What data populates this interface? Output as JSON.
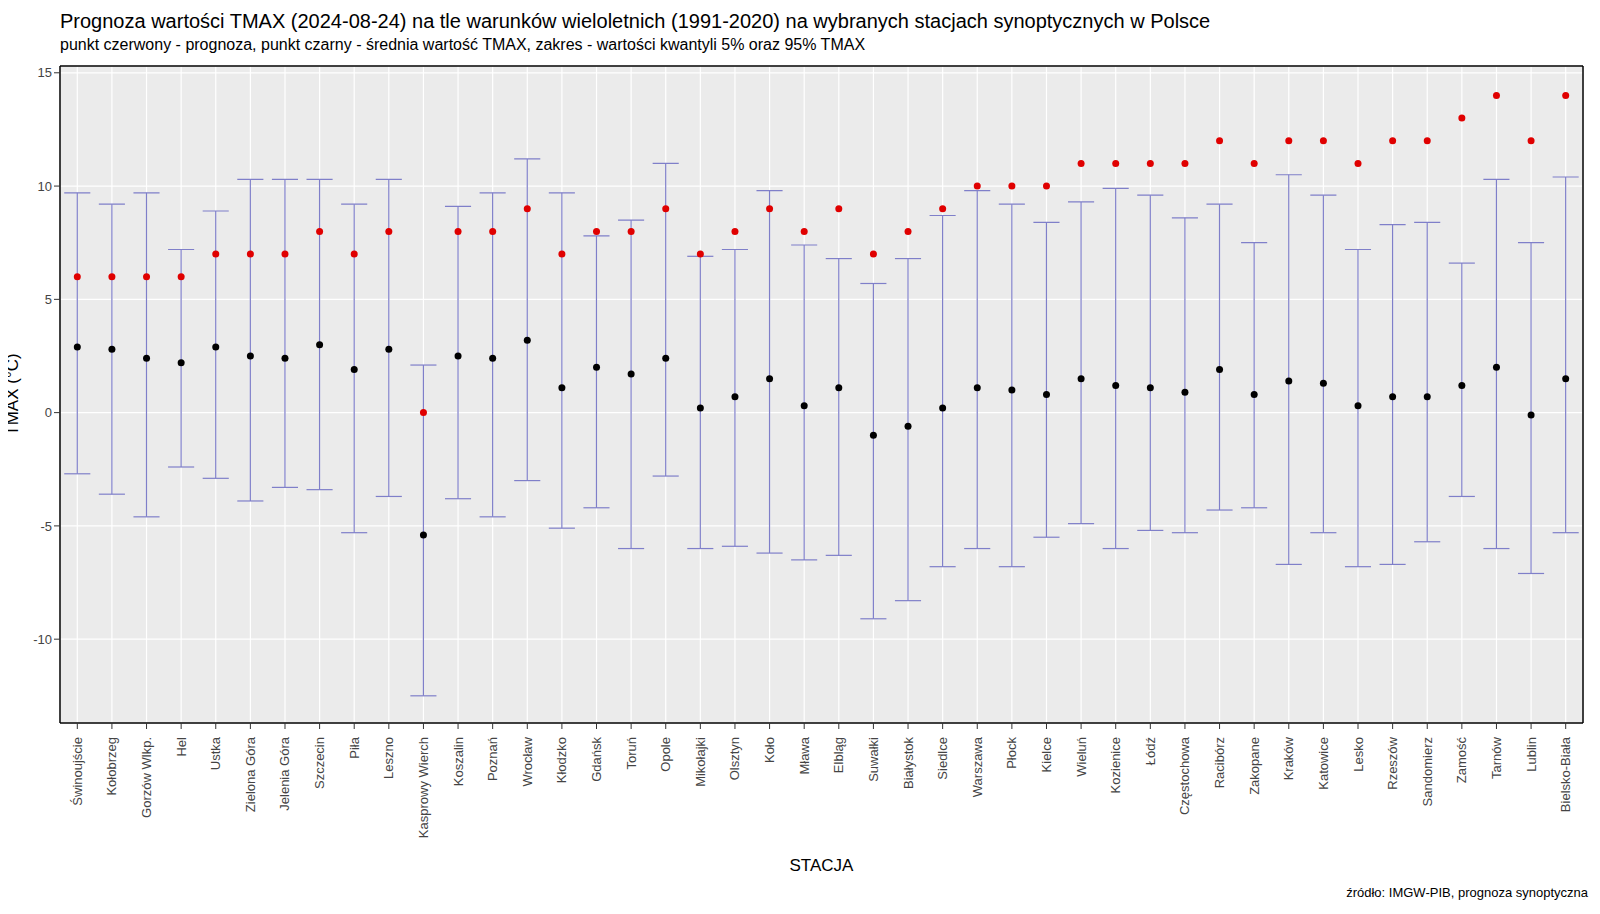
{
  "chart_data": {
    "type": "errorbar_scatter",
    "title": "Prognoza wartości TMAX (2024-08-24) na tle warunków wieloletnich (1991-2020) na wybranych stacjach synoptycznych w Polsce",
    "subtitle": "punkt czerwony - prognoza, punkt czarny - średnia wartość TMAX, zakres - wartości kwantyli 5% oraz 95% TMAX",
    "x_label": "STACJA",
    "y_label": "TMAX (°C)",
    "source": "źródło: IMGW-PIB, prognoza synoptyczna",
    "categories": [
      "Świnoujście",
      "Kołobrzeg",
      "Gorzów Wlkp.",
      "Hel",
      "Ustka",
      "Zielona Góra",
      "Jelenia Góra",
      "Szczecin",
      "Piła",
      "Leszno",
      "Kasprowy Wierch",
      "Koszalin",
      "Poznań",
      "Wrocław",
      "Kłodzko",
      "Gdańsk",
      "Toruń",
      "Opole",
      "Mikołajki",
      "Olsztyn",
      "Koło",
      "Mława",
      "Elbląg",
      "Suwałki",
      "Białystok",
      "Siedlce",
      "Warszawa",
      "Płock",
      "Kielce",
      "Wieluń",
      "Kozienice",
      "Łódź",
      "Częstochowa",
      "Racibórz",
      "Zakopane",
      "Kraków",
      "Katowice",
      "Lesko",
      "Rzeszów",
      "Sandomierz",
      "Zamość",
      "Tarnów",
      "Lublin",
      "Bielsko-Biała"
    ],
    "error_bars": {
      "color": "#7f7fc9",
      "low": [
        -2.7,
        -3.6,
        -4.6,
        -2.4,
        -2.9,
        -3.9,
        -3.3,
        -3.4,
        -5.3,
        -3.7,
        -12.5,
        -3.8,
        -4.6,
        -3.0,
        -5.1,
        -4.2,
        -6.0,
        -2.8,
        -6.0,
        -5.9,
        -6.2,
        -6.5,
        -6.3,
        -9.1,
        -8.3,
        -6.8,
        -6.0,
        -6.8,
        -5.5,
        -4.9,
        -6.0,
        -5.2,
        -5.3,
        -4.3,
        -4.2,
        -6.7,
        -5.3,
        -6.8,
        -6.7,
        -5.7,
        -3.7,
        -6.0,
        -7.1,
        -5.3
      ],
      "high": [
        9.7,
        9.2,
        9.7,
        7.2,
        8.9,
        10.3,
        10.3,
        10.3,
        9.2,
        10.3,
        2.1,
        9.1,
        9.7,
        11.2,
        9.7,
        7.8,
        8.5,
        11.0,
        6.9,
        7.2,
        9.8,
        7.4,
        6.8,
        5.7,
        6.8,
        8.7,
        9.8,
        9.2,
        8.4,
        9.3,
        9.9,
        9.6,
        8.6,
        9.2,
        7.5,
        10.5,
        9.6,
        7.2,
        8.3,
        8.4,
        6.6,
        10.3,
        7.5,
        10.4
      ]
    },
    "series": [
      {
        "type": "scatter",
        "color": "#000000",
        "values": [
          2.9,
          2.8,
          2.4,
          2.2,
          2.9,
          2.5,
          2.4,
          3.0,
          1.9,
          2.8,
          -5.4,
          2.5,
          2.4,
          3.2,
          1.1,
          2.0,
          1.7,
          2.4,
          0.2,
          0.7,
          1.5,
          0.3,
          1.1,
          -1.0,
          -0.6,
          0.2,
          1.1,
          1.0,
          0.8,
          1.5,
          1.2,
          1.1,
          0.9,
          1.9,
          0.8,
          1.4,
          1.3,
          0.3,
          0.7,
          0.7,
          1.2,
          2.0,
          -0.1,
          1.5
        ]
      },
      {
        "type": "scatter",
        "color": "#e00000",
        "values": [
          6,
          6,
          6,
          6,
          7,
          7,
          7,
          8,
          7,
          8,
          0,
          8,
          8,
          9,
          7,
          8,
          8,
          9,
          7,
          8,
          9,
          8,
          9,
          7,
          8,
          9,
          10,
          10,
          10,
          11,
          11,
          11,
          11,
          12,
          11,
          12,
          12,
          11,
          12,
          12,
          13,
          14,
          12,
          14
        ]
      }
    ],
    "ylim": [
      -13.7,
      15.3
    ],
    "yticks": [
      -10,
      -5,
      0,
      5,
      10,
      15
    ],
    "grid": true
  }
}
